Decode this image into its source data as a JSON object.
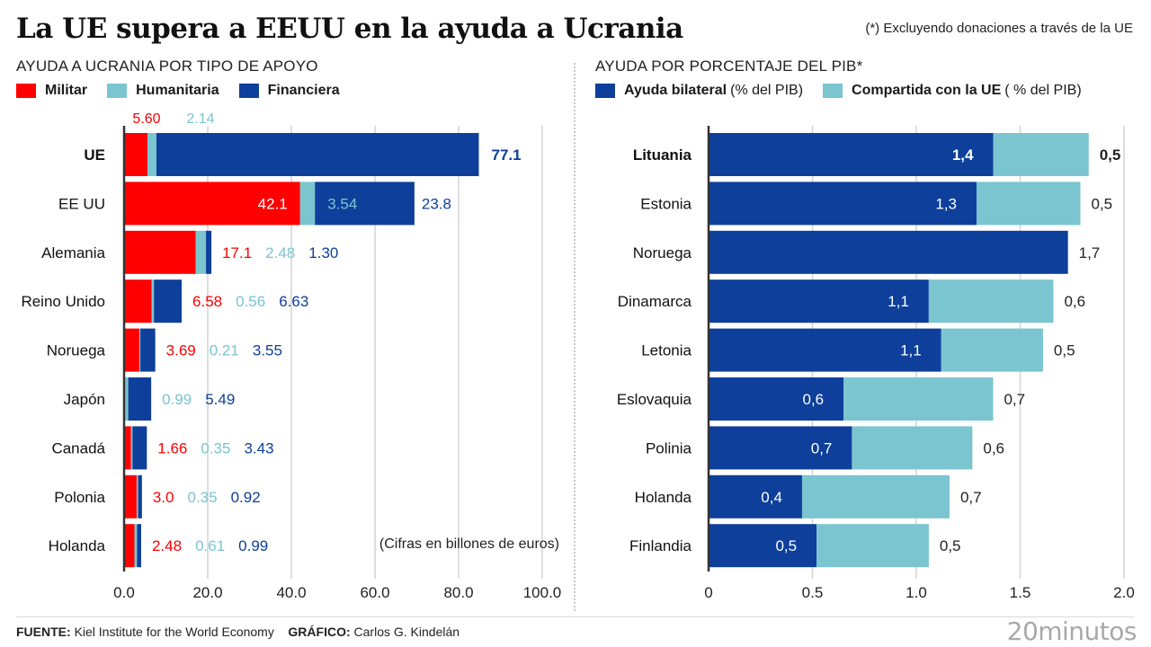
{
  "header": {
    "title": "La UE supera a EEUU en la ayuda a Ucrania",
    "note": "(*) Excluyendo donaciones a través de la UE"
  },
  "colors": {
    "militar": "#fe0000",
    "humanitaria": "#7ac5d0",
    "financiera": "#0e3f9a",
    "bilateral": "#0e3f9a",
    "compartida": "#7ac5d0",
    "grid": "#d4d4d4",
    "axis": "#333333"
  },
  "left": {
    "subtitle": "AYUDA A UCRANIA POR TIPO DE APOYO",
    "legend": [
      {
        "key": "militar",
        "label": "Militar"
      },
      {
        "key": "humanitaria",
        "label": "Humanitaria"
      },
      {
        "key": "financiera",
        "label": "Financiera"
      }
    ],
    "unit_note": "(Cifras en billones de euros)"
  },
  "right": {
    "subtitle": "AYUDA POR PORCENTAJE DEL PIB*",
    "legend": [
      {
        "key": "bilateral",
        "label": "Ayuda bilateral",
        "suffix": "(% del PIB)"
      },
      {
        "key": "compartida",
        "label": "Compartida con la UE",
        "suffix": "( % del PIB)"
      }
    ]
  },
  "chart_data": [
    {
      "type": "bar",
      "orientation": "horizontal",
      "stacked": true,
      "title": "AYUDA A UCRANIA POR TIPO DE APOYO",
      "xlabel": "(Cifras en billones de euros)",
      "ylabel": "",
      "xlim": [
        0,
        100
      ],
      "xticks": [
        "0.0",
        "20.0",
        "40.0",
        "60.0",
        "80.0",
        "100.0"
      ],
      "grid": true,
      "legend_position": "top-left",
      "categories": [
        "UE",
        "EE UU",
        "Alemania",
        "Reino Unido",
        "Noruega",
        "Japón",
        "Canadá",
        "Polonia",
        "Holanda"
      ],
      "bold_categories": [
        "UE"
      ],
      "series": [
        {
          "name": "Militar",
          "values": [
            5.6,
            42.1,
            17.1,
            6.58,
            3.69,
            0.0,
            1.66,
            3.0,
            2.48
          ],
          "labels": [
            "5.60",
            "42.1",
            "17.1",
            "6.58",
            "3.69",
            "",
            "1.66",
            "3.0",
            "2.48"
          ]
        },
        {
          "name": "Humanitaria",
          "values": [
            2.14,
            3.54,
            2.48,
            0.56,
            0.21,
            0.99,
            0.35,
            0.35,
            0.61
          ],
          "labels": [
            "2.14",
            "3.54",
            "2.48",
            "0.56",
            "0.21",
            "0.99",
            "0.35",
            "0.35",
            "0.61"
          ]
        },
        {
          "name": "Financiera",
          "values": [
            77.1,
            23.8,
            1.3,
            6.63,
            3.55,
            5.49,
            3.43,
            0.92,
            0.99
          ],
          "labels": [
            "77.1",
            "23.8",
            "1.30",
            "6.63",
            "3.55",
            "5.49",
            "3.43",
            "0.92",
            "0.99"
          ]
        }
      ]
    },
    {
      "type": "bar",
      "orientation": "horizontal",
      "stacked": true,
      "title": "AYUDA POR PORCENTAJE DEL PIB*",
      "xlabel": "",
      "ylabel": "",
      "xlim": [
        0,
        2.0
      ],
      "xticks": [
        "0",
        "0.5",
        "1.0",
        "1.5",
        "2.0"
      ],
      "grid": true,
      "legend_position": "top-left",
      "categories": [
        "Lituania",
        "Estonia",
        "Noruega",
        "Dinamarca",
        "Letonia",
        "Eslovaquia",
        "Polinia",
        "Holanda",
        "Finlandia"
      ],
      "bold_categories": [
        "Lituania"
      ],
      "series": [
        {
          "name": "Ayuda bilateral (% del PIB)",
          "values": [
            1.37,
            1.29,
            1.73,
            1.06,
            1.12,
            0.65,
            0.69,
            0.45,
            0.52
          ],
          "labels": [
            "1,4",
            "1,3",
            "1,7",
            "1,1",
            "1,1",
            "0,6",
            "0,7",
            "0,4",
            "0,5"
          ]
        },
        {
          "name": "Compartida con la UE (% del PIB)",
          "values": [
            0.46,
            0.5,
            0.0,
            0.6,
            0.49,
            0.72,
            0.58,
            0.71,
            0.54
          ],
          "labels": [
            "0,5",
            "0,5",
            "",
            "0,6",
            "0,5",
            "0,7",
            "0,6",
            "0,7",
            "0,5"
          ]
        }
      ]
    }
  ],
  "footer": {
    "source_label": "FUENTE:",
    "source": "Kiel Institute for the World Economy",
    "graphic_label": "GRÁFICO:",
    "graphic": "Carlos G. Kindelán",
    "brand": "20minutos"
  }
}
